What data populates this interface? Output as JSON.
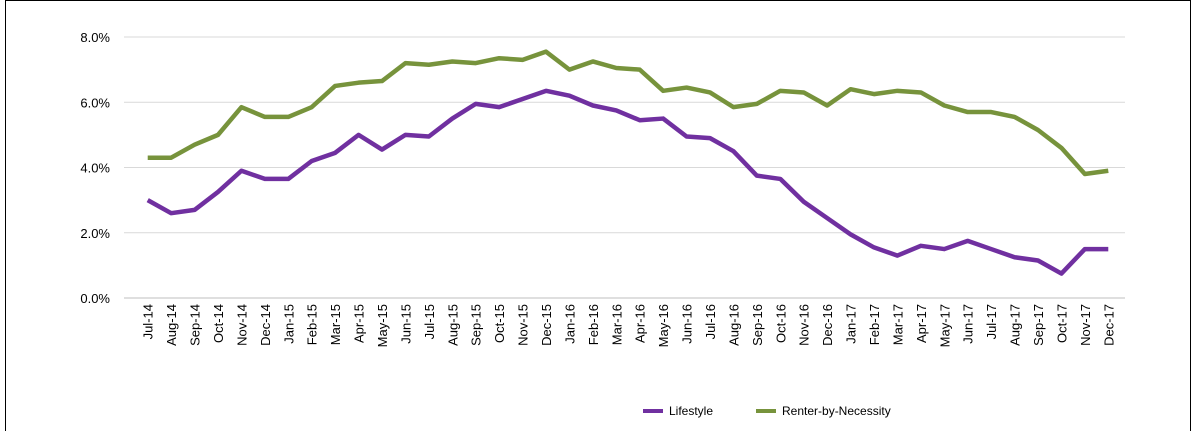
{
  "chart_data": {
    "type": "line",
    "categories": [
      "Jul-14",
      "Aug-14",
      "Sep-14",
      "Oct-14",
      "Nov-14",
      "Dec-14",
      "Jan-15",
      "Feb-15",
      "Mar-15",
      "Apr-15",
      "May-15",
      "Jun-15",
      "Jul-15",
      "Aug-15",
      "Sep-15",
      "Oct-15",
      "Nov-15",
      "Dec-15",
      "Jan-16",
      "Feb-16",
      "Mar-16",
      "Apr-16",
      "May-16",
      "Jun-16",
      "Jul-16",
      "Aug-16",
      "Sep-16",
      "Oct-16",
      "Nov-16",
      "Dec-16",
      "Jan-17",
      "Feb-17",
      "Mar-17",
      "Apr-17",
      "May-17",
      "Jun-17",
      "Jul-17",
      "Aug-17",
      "Sep-17",
      "Oct-17",
      "Nov-17",
      "Dec-17"
    ],
    "series": [
      {
        "name": "Lifestyle",
        "color": "#7030a0",
        "values": [
          3.0,
          2.6,
          2.7,
          3.25,
          3.9,
          3.65,
          3.65,
          4.2,
          4.45,
          5.0,
          4.55,
          5.0,
          4.95,
          5.5,
          5.95,
          5.85,
          6.1,
          6.35,
          6.2,
          5.9,
          5.75,
          5.45,
          5.5,
          4.95,
          4.9,
          4.5,
          3.75,
          3.65,
          2.95,
          2.45,
          1.95,
          1.55,
          1.3,
          1.6,
          1.5,
          1.75,
          1.5,
          1.25,
          1.15,
          0.75,
          1.5,
          1.5
        ]
      },
      {
        "name": "Renter-by-Necessity",
        "color": "#77933c",
        "values": [
          4.3,
          4.3,
          4.7,
          5.0,
          5.85,
          5.55,
          5.55,
          5.85,
          6.5,
          6.6,
          6.65,
          7.2,
          7.15,
          7.25,
          7.2,
          7.35,
          7.3,
          7.55,
          7.0,
          7.25,
          7.05,
          7.0,
          6.35,
          6.45,
          6.3,
          5.85,
          5.95,
          6.35,
          6.3,
          5.9,
          6.4,
          6.25,
          6.35,
          6.3,
          5.9,
          5.7,
          5.7,
          5.55,
          5.15,
          4.6,
          3.8,
          3.9
        ]
      }
    ],
    "ylim": [
      0,
      8
    ],
    "yticks": [
      {
        "value": 0,
        "label": "0.0%"
      },
      {
        "value": 2,
        "label": "2.0%"
      },
      {
        "value": 4,
        "label": "4.0%"
      },
      {
        "value": 6,
        "label": "6.0%"
      },
      {
        "value": 8,
        "label": "8.0%"
      }
    ],
    "grid": true,
    "legend": "bottom"
  }
}
